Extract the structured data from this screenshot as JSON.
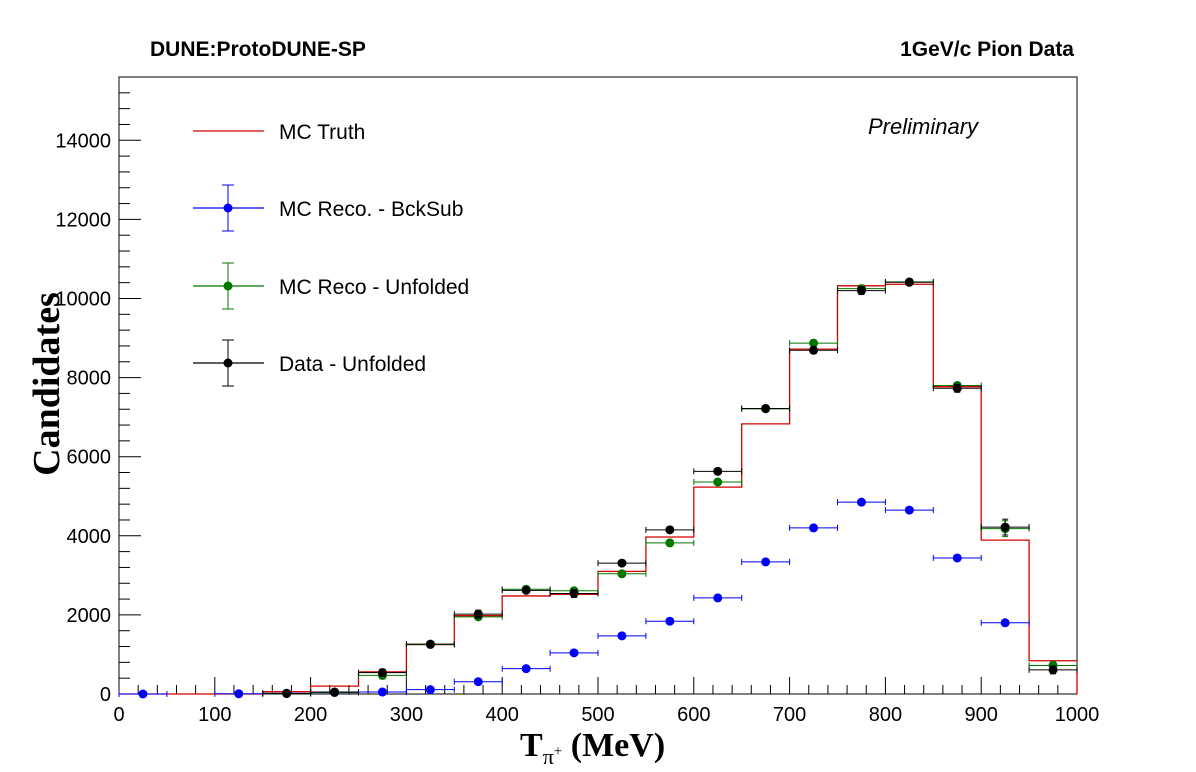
{
  "header": {
    "left": "DUNE:ProtoDUNE-SP",
    "right": "1GeV/c Pion Data"
  },
  "chart_data": {
    "type": "line",
    "ylabel": "Candidates",
    "xlabel": {
      "main": "T",
      "sub": "π",
      "sup": "+",
      "unit": " (MeV)"
    },
    "annotation": "Preliminary",
    "xlim": [
      0,
      1000
    ],
    "ylim": [
      0,
      15600
    ],
    "x_ticks": [
      0,
      100,
      200,
      300,
      400,
      500,
      600,
      700,
      800,
      900,
      1000
    ],
    "y_ticks": [
      0,
      2000,
      4000,
      6000,
      8000,
      10000,
      12000,
      14000
    ],
    "grid": false,
    "legend_placement": "top-left",
    "bin_edges": [
      0,
      50,
      100,
      150,
      200,
      250,
      300,
      350,
      400,
      450,
      500,
      550,
      600,
      650,
      700,
      750,
      800,
      850,
      900,
      950,
      1000
    ],
    "bin_centers": [
      25,
      75,
      125,
      175,
      225,
      275,
      325,
      375,
      425,
      475,
      525,
      575,
      625,
      675,
      725,
      775,
      825,
      875,
      925,
      975
    ],
    "series": [
      {
        "name": "MC Truth",
        "style": "step",
        "color": "#d40000",
        "values": [
          0,
          0,
          0,
          60,
          200,
          560,
          1250,
          1980,
          2480,
          2520,
          3100,
          3970,
          5230,
          6830,
          8720,
          10320,
          10360,
          7770,
          3890,
          840
        ]
      },
      {
        "name": "MC Reco. - BckSub",
        "style": "points",
        "color": "#0000ff",
        "values": [
          0,
          null,
          5,
          20,
          35,
          50,
          110,
          310,
          640,
          1040,
          1470,
          1840,
          2430,
          3340,
          4200,
          4850,
          4650,
          3440,
          1800,
          720
        ],
        "errors": [
          0,
          0,
          0,
          0,
          0,
          0,
          0,
          0,
          0,
          0,
          0,
          0,
          0,
          0,
          0,
          0,
          0,
          0,
          0,
          0
        ]
      },
      {
        "name": "MC Reco - Unfolded",
        "style": "points",
        "color": "#007800",
        "values": [
          null,
          null,
          null,
          10,
          40,
          470,
          1250,
          1950,
          2650,
          2610,
          3040,
          3820,
          5360,
          7210,
          8870,
          10250,
          10420,
          7800,
          4180,
          720
        ],
        "errors": [
          0,
          0,
          0,
          0,
          0,
          90,
          0,
          70,
          0,
          0,
          0,
          0,
          0,
          0,
          80,
          90,
          0,
          80,
          200,
          100
        ]
      },
      {
        "name": "Data - Unfolded",
        "style": "points",
        "color": "#000000",
        "values": [
          null,
          null,
          null,
          15,
          50,
          540,
          1260,
          2020,
          2620,
          2540,
          3310,
          4150,
          5630,
          7220,
          8690,
          10200,
          10410,
          7730,
          4220,
          610
        ],
        "errors": [
          0,
          0,
          0,
          0,
          0,
          90,
          0,
          100,
          0,
          100,
          0,
          0,
          0,
          0,
          80,
          100,
          0,
          100,
          200,
          100
        ]
      }
    ]
  }
}
